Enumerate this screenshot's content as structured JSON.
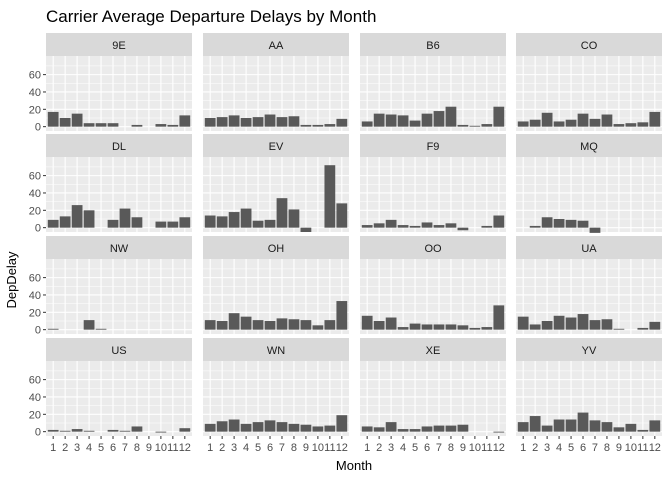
{
  "chart_data": {
    "type": "bar",
    "title": "Carrier Average Departure Delays by Month",
    "xlabel": "Month",
    "ylabel": "DepDelay",
    "ylim": [
      -5,
      78
    ],
    "yticks": [
      0,
      20,
      40,
      60
    ],
    "x": [
      1,
      2,
      3,
      4,
      5,
      6,
      7,
      8,
      9,
      10,
      11,
      12
    ],
    "panel_bg": "#ebebeb",
    "strip_bg": "#d9d9d9",
    "grid_color": "#ffffff",
    "bar_color": "#595959",
    "facets": [
      {
        "name": "9E",
        "values": [
          17,
          10,
          15,
          4,
          4,
          4,
          null,
          2,
          null,
          3,
          2,
          13
        ]
      },
      {
        "name": "AA",
        "values": [
          10,
          11,
          13,
          10,
          11,
          14,
          11,
          12,
          2,
          2,
          3,
          9
        ]
      },
      {
        "name": "B6",
        "values": [
          6,
          15,
          14,
          13,
          7,
          15,
          18,
          23,
          2,
          1,
          3,
          23
        ]
      },
      {
        "name": "CO",
        "values": [
          6,
          8,
          16,
          6,
          8,
          15,
          9,
          14,
          3,
          4,
          5,
          17
        ]
      },
      {
        "name": "DL",
        "values": [
          9,
          13,
          26,
          20,
          null,
          9,
          22,
          12,
          null,
          7,
          7,
          12
        ]
      },
      {
        "name": "EV",
        "values": [
          14,
          13,
          18,
          22,
          8,
          9,
          34,
          21,
          -5,
          null,
          72,
          28
        ]
      },
      {
        "name": "F9",
        "values": [
          3,
          5,
          9,
          3,
          2,
          6,
          3,
          5,
          -3,
          null,
          2,
          14
        ]
      },
      {
        "name": "MQ",
        "values": [
          null,
          2,
          12,
          10,
          9,
          8,
          -6,
          null,
          null,
          null,
          null,
          null
        ]
      },
      {
        "name": "NW",
        "values": [
          1,
          null,
          null,
          11,
          1,
          null,
          null,
          null,
          null,
          null,
          null,
          null
        ]
      },
      {
        "name": "OH",
        "values": [
          11,
          10,
          19,
          15,
          11,
          10,
          13,
          12,
          11,
          5,
          11,
          33
        ]
      },
      {
        "name": "OO",
        "values": [
          16,
          10,
          14,
          3,
          7,
          6,
          6,
          6,
          5,
          2,
          3,
          28
        ]
      },
      {
        "name": "UA",
        "values": [
          15,
          6,
          10,
          16,
          14,
          18,
          11,
          12,
          1,
          null,
          2,
          9
        ]
      },
      {
        "name": "US",
        "values": [
          2,
          1,
          3,
          1,
          null,
          2,
          1,
          6,
          null,
          -1,
          null,
          4
        ]
      },
      {
        "name": "WN",
        "values": [
          9,
          12,
          14,
          9,
          11,
          13,
          11,
          9,
          8,
          6,
          7,
          19
        ]
      },
      {
        "name": "XE",
        "values": [
          6,
          5,
          11,
          3,
          3,
          6,
          7,
          7,
          8,
          null,
          null,
          -1
        ]
      },
      {
        "name": "YV",
        "values": [
          11,
          18,
          7,
          14,
          14,
          22,
          13,
          11,
          5,
          9,
          2,
          13
        ]
      }
    ]
  }
}
